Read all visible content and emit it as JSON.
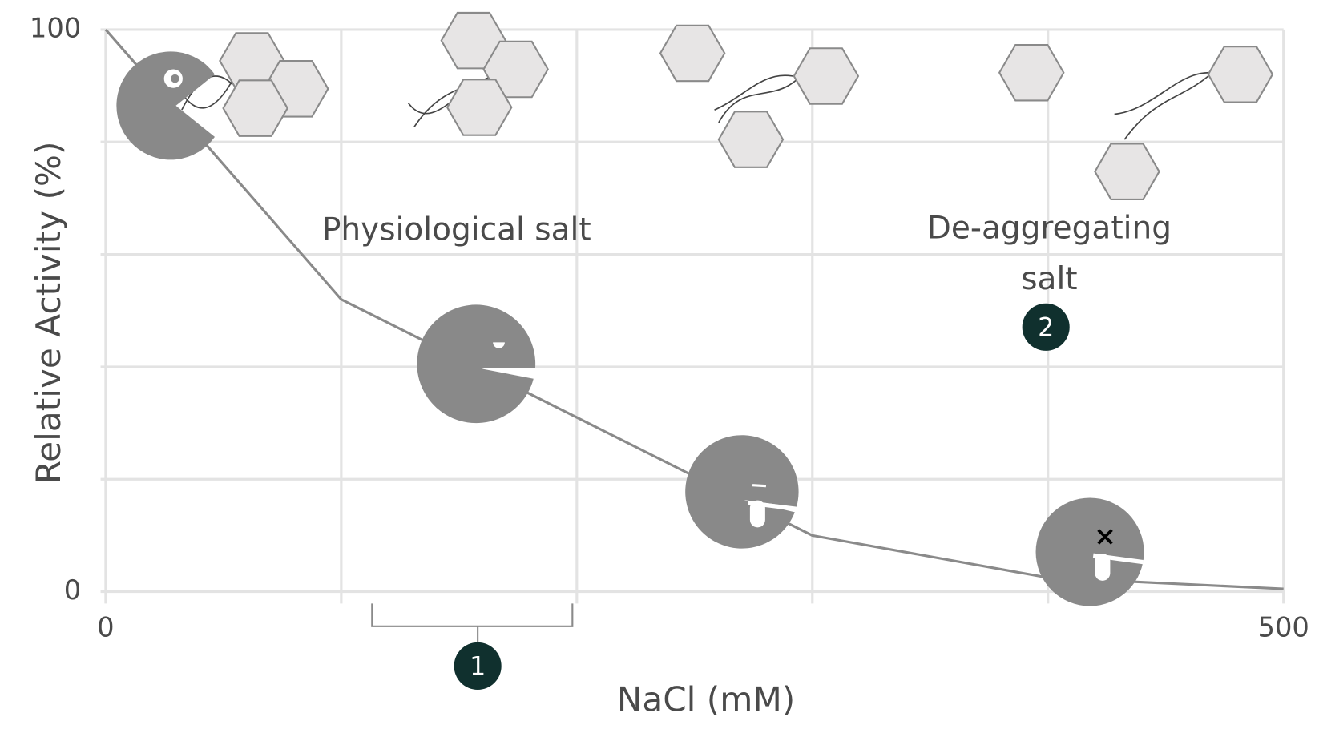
{
  "chart_data": {
    "type": "line",
    "xlabel": "NaCl (mM)",
    "ylabel": "Relative Activity (%)",
    "x": [
      0,
      100,
      200,
      300,
      400,
      500
    ],
    "values": [
      100,
      52,
      31,
      10,
      2.5,
      0.5
    ],
    "color": "#8a8a8a",
    "xlim": [
      0,
      500
    ],
    "ylim": [
      0,
      100
    ],
    "xticks": [
      0,
      500
    ],
    "yticks": [
      0,
      100
    ],
    "xgrid": [
      0,
      100,
      200,
      300,
      400,
      500
    ],
    "ygrid": [
      0,
      20,
      40,
      60,
      80,
      100
    ],
    "grid": true,
    "annotations": [
      "Physiological salt",
      "De-aggregating salt"
    ],
    "badges": [
      "1",
      "2"
    ]
  }
}
